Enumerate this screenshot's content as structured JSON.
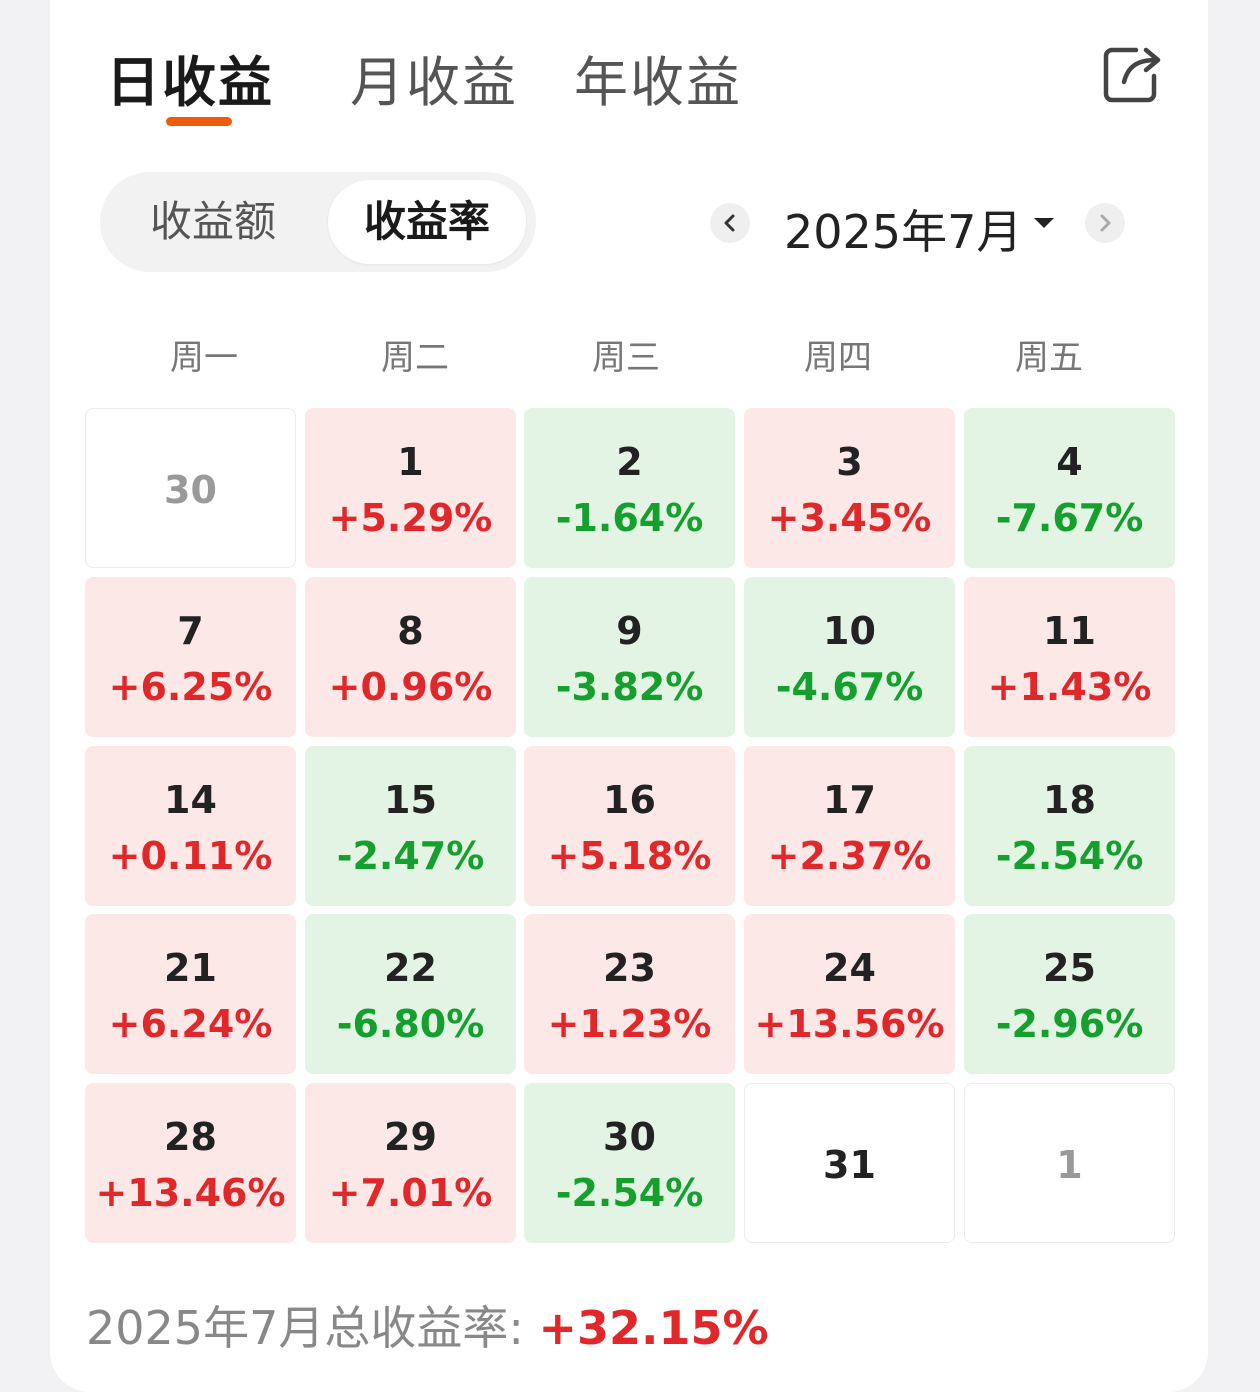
{
  "tabs": {
    "daily": "日收益",
    "monthly": "月收益",
    "yearly": "年收益"
  },
  "toggle": {
    "amount": "收益额",
    "rate": "收益率"
  },
  "month_selector": {
    "label": "2025年7月"
  },
  "weekdays": [
    "周一",
    "周二",
    "周三",
    "周四",
    "周五"
  ],
  "calendar": {
    "rows": [
      [
        {
          "day": "30",
          "pct": ""
        },
        {
          "day": "1",
          "pct": "+5.29%"
        },
        {
          "day": "2",
          "pct": "-1.64%"
        },
        {
          "day": "3",
          "pct": "+3.45%"
        },
        {
          "day": "4",
          "pct": "-7.67%"
        }
      ],
      [
        {
          "day": "7",
          "pct": "+6.25%"
        },
        {
          "day": "8",
          "pct": "+0.96%"
        },
        {
          "day": "9",
          "pct": "-3.82%"
        },
        {
          "day": "10",
          "pct": "-4.67%"
        },
        {
          "day": "11",
          "pct": "+1.43%"
        }
      ],
      [
        {
          "day": "14",
          "pct": "+0.11%"
        },
        {
          "day": "15",
          "pct": "-2.47%"
        },
        {
          "day": "16",
          "pct": "+5.18%"
        },
        {
          "day": "17",
          "pct": "+2.37%"
        },
        {
          "day": "18",
          "pct": "-2.54%"
        }
      ],
      [
        {
          "day": "21",
          "pct": "+6.24%"
        },
        {
          "day": "22",
          "pct": "-6.80%"
        },
        {
          "day": "23",
          "pct": "+1.23%"
        },
        {
          "day": "24",
          "pct": "+13.56%"
        },
        {
          "day": "25",
          "pct": "-2.96%"
        }
      ],
      [
        {
          "day": "28",
          "pct": "+13.46%"
        },
        {
          "day": "29",
          "pct": "+7.01%"
        },
        {
          "day": "30",
          "pct": "-2.54%"
        },
        {
          "day": "31",
          "pct": ""
        },
        {
          "day": "1",
          "pct": ""
        }
      ]
    ]
  },
  "summary": {
    "label": "2025年7月总收益率:",
    "value": "+32.15%"
  },
  "colors": {
    "accent": "#f25a0c",
    "gain": "#e0282b",
    "loss": "#159f2d",
    "gain_bg": "#fde8e8",
    "loss_bg": "#e3f4e4"
  }
}
